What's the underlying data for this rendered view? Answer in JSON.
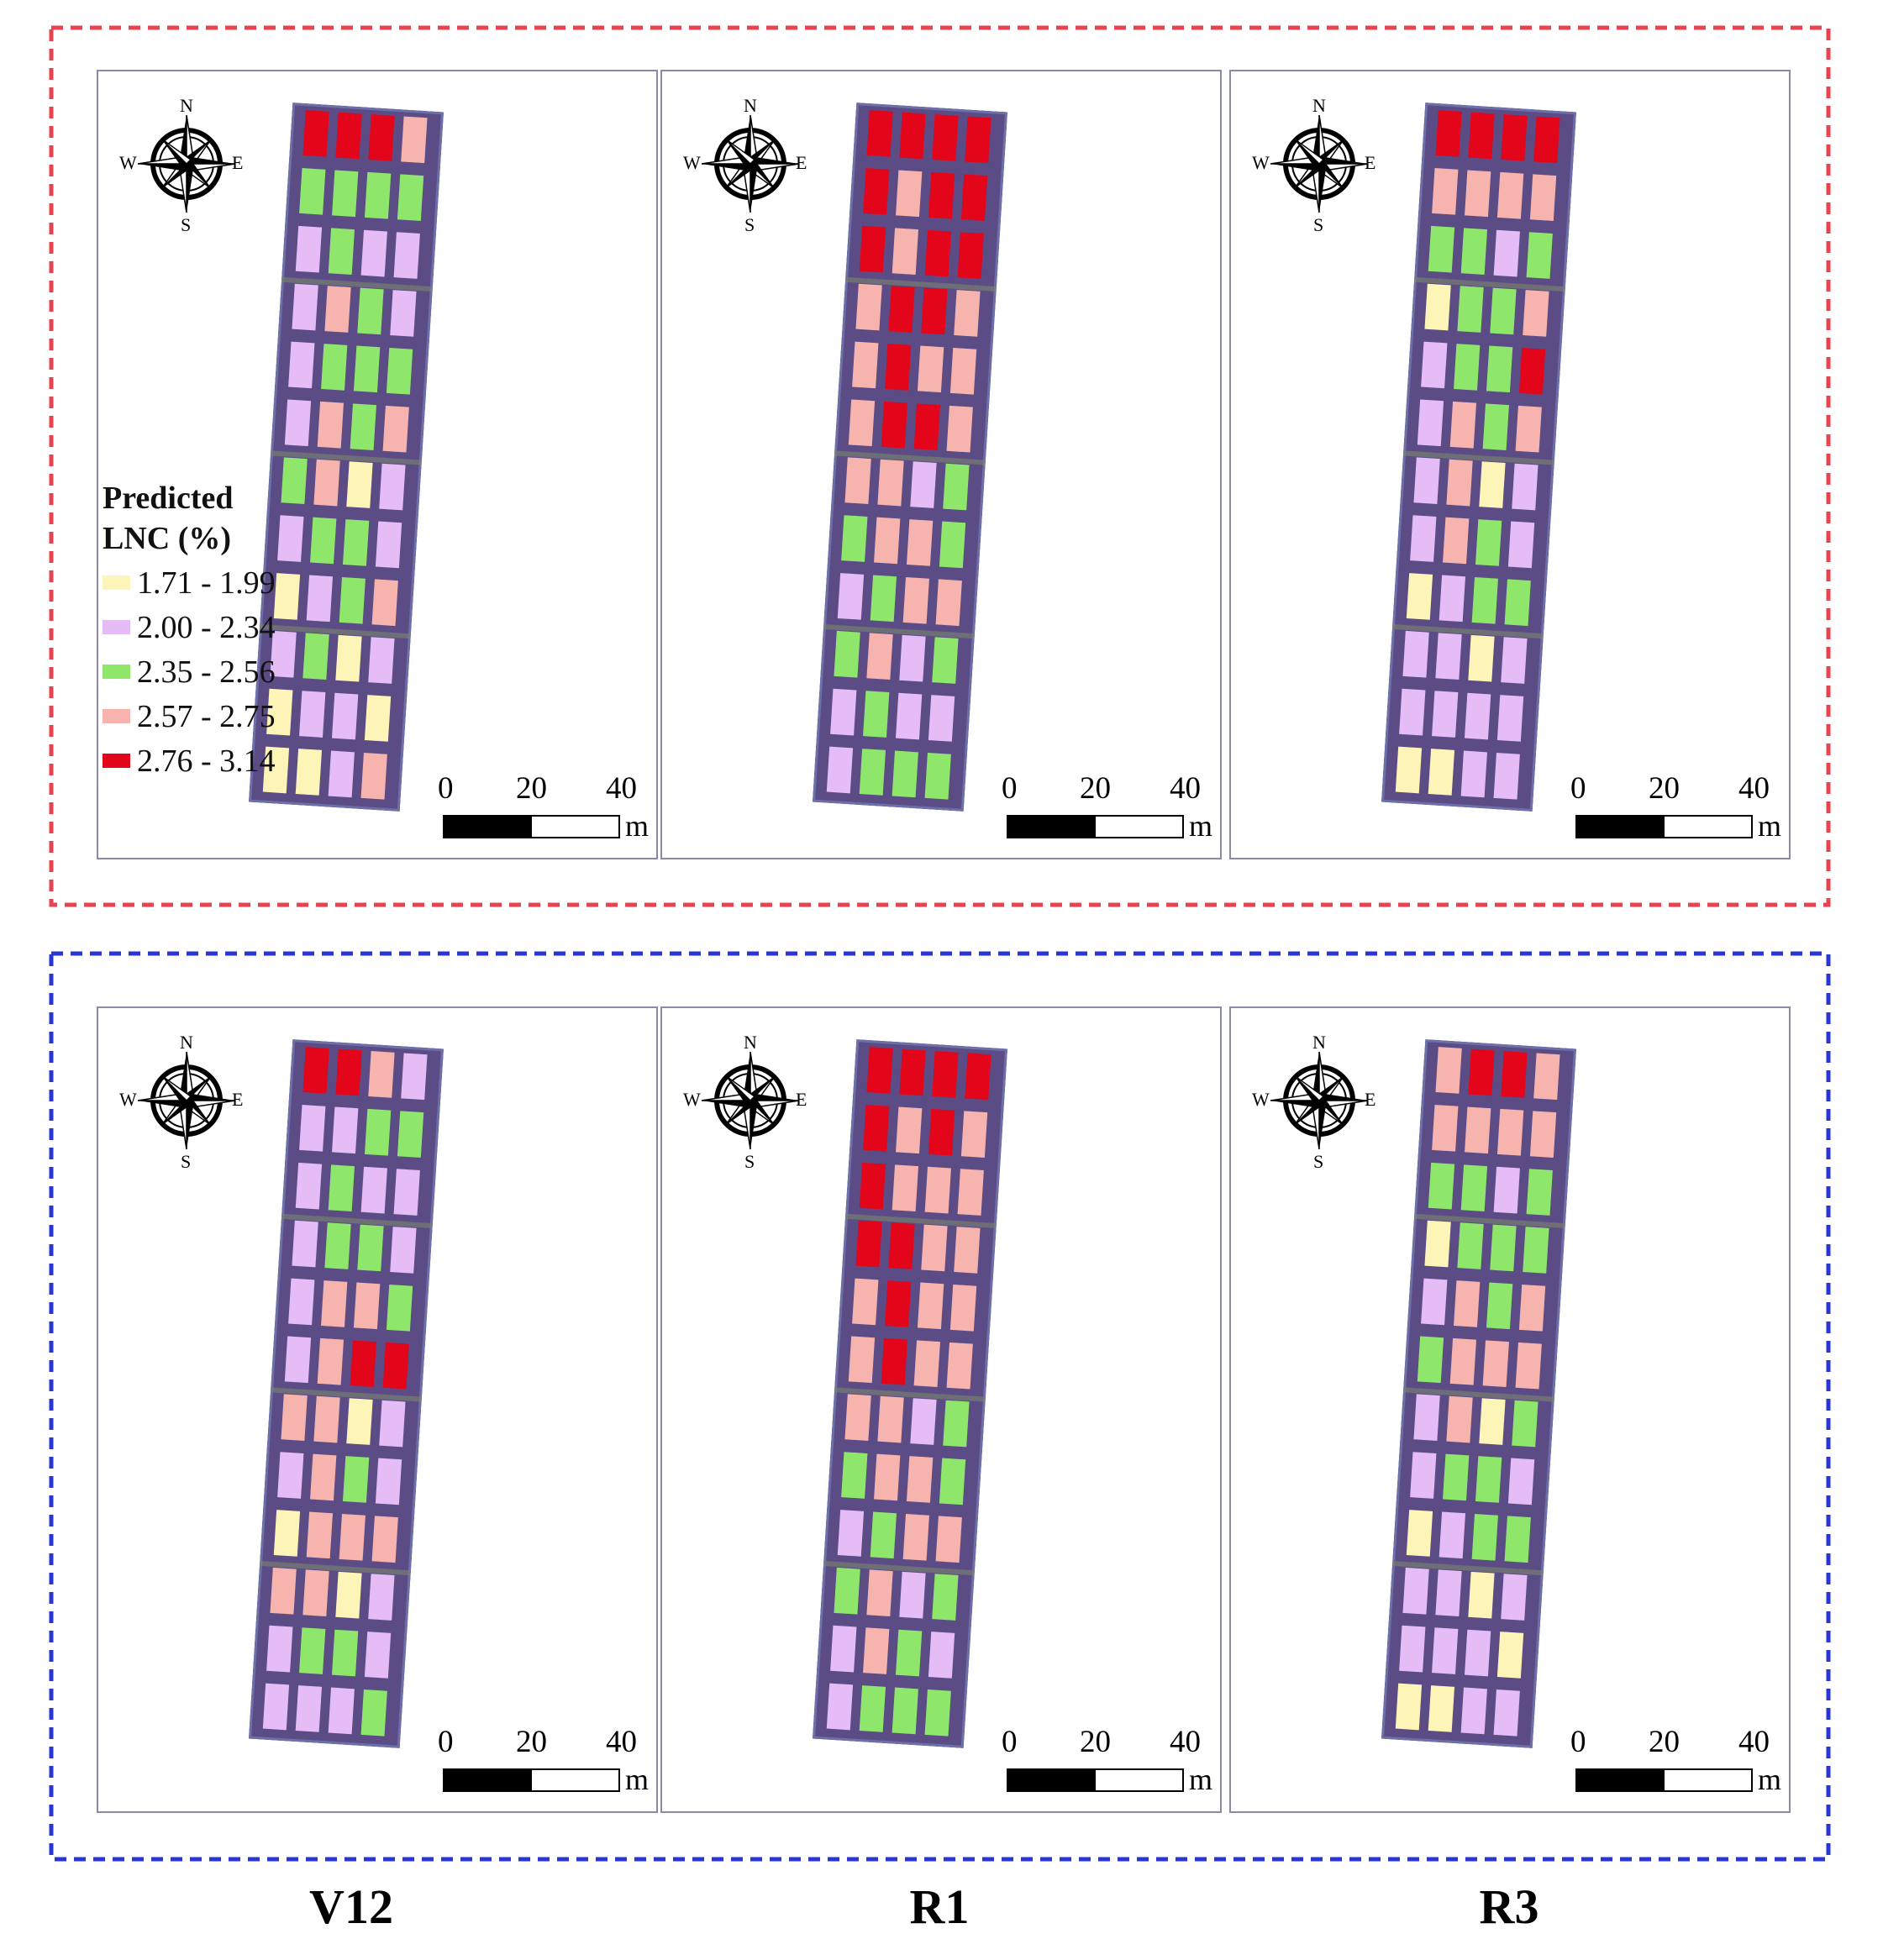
{
  "legend": {
    "title_line1": "Predicted",
    "title_line2": "LNC (%)",
    "classes": [
      {
        "label": "1.71 - 1.99",
        "color": "#fdf5b8"
      },
      {
        "label": "2.00 - 2.34",
        "color": "#e6bcf6"
      },
      {
        "label": "2.35 - 2.56",
        "color": "#8ee66b"
      },
      {
        "label": "2.57 - 2.75",
        "color": "#f7b3ae"
      },
      {
        "label": "2.76 - 3.14",
        "color": "#e3051a"
      }
    ]
  },
  "compass": {
    "n": "N",
    "s": "S",
    "e": "E",
    "w": "W"
  },
  "scalebar": {
    "ticks": [
      "0",
      "20",
      "40"
    ],
    "unit": "m"
  },
  "group_border_colors": [
    "#e8434f",
    "#2a35d6"
  ],
  "stages": [
    "V12",
    "R1",
    "R3"
  ],
  "plot_grids": [
    [
      [
        [
          4,
          4,
          4,
          3
        ],
        [
          2,
          2,
          2,
          2
        ],
        [
          1,
          2,
          1,
          1
        ],
        [
          1,
          3,
          2,
          1
        ],
        [
          1,
          2,
          2,
          2
        ],
        [
          1,
          3,
          2,
          3
        ],
        [
          2,
          3,
          0,
          1
        ],
        [
          1,
          2,
          2,
          1
        ],
        [
          0,
          1,
          2,
          3
        ],
        [
          1,
          2,
          0,
          1
        ],
        [
          0,
          1,
          1,
          0
        ],
        [
          0,
          0,
          1,
          3
        ]
      ],
      [
        [
          4,
          4,
          4,
          4
        ],
        [
          4,
          3,
          4,
          4
        ],
        [
          4,
          3,
          4,
          4
        ],
        [
          3,
          4,
          4,
          3
        ],
        [
          3,
          4,
          3,
          3
        ],
        [
          3,
          4,
          4,
          3
        ],
        [
          3,
          3,
          1,
          2
        ],
        [
          2,
          3,
          3,
          2
        ],
        [
          1,
          2,
          3,
          3
        ],
        [
          2,
          3,
          1,
          2
        ],
        [
          1,
          2,
          1,
          1
        ],
        [
          1,
          2,
          2,
          2
        ]
      ],
      [
        [
          4,
          4,
          4,
          4
        ],
        [
          3,
          3,
          3,
          3
        ],
        [
          2,
          2,
          1,
          2
        ],
        [
          0,
          2,
          2,
          3
        ],
        [
          1,
          2,
          2,
          4
        ],
        [
          1,
          3,
          2,
          3
        ],
        [
          1,
          3,
          0,
          1
        ],
        [
          1,
          3,
          2,
          1
        ],
        [
          0,
          1,
          2,
          2
        ],
        [
          1,
          1,
          0,
          1
        ],
        [
          1,
          1,
          1,
          1
        ],
        [
          0,
          0,
          1,
          1
        ]
      ]
    ],
    [
      [
        [
          4,
          4,
          3,
          1
        ],
        [
          1,
          1,
          2,
          2
        ],
        [
          1,
          2,
          1,
          1
        ],
        [
          1,
          2,
          2,
          1
        ],
        [
          1,
          3,
          3,
          2
        ],
        [
          1,
          3,
          4,
          4
        ],
        [
          3,
          3,
          0,
          1
        ],
        [
          1,
          3,
          2,
          1
        ],
        [
          0,
          3,
          3,
          3
        ],
        [
          3,
          3,
          0,
          1
        ],
        [
          1,
          2,
          2,
          1
        ],
        [
          1,
          1,
          1,
          2
        ]
      ],
      [
        [
          4,
          4,
          4,
          4
        ],
        [
          4,
          3,
          4,
          3
        ],
        [
          4,
          3,
          3,
          3
        ],
        [
          4,
          4,
          3,
          3
        ],
        [
          3,
          4,
          3,
          3
        ],
        [
          3,
          4,
          3,
          3
        ],
        [
          3,
          3,
          1,
          2
        ],
        [
          2,
          3,
          3,
          2
        ],
        [
          1,
          2,
          3,
          3
        ],
        [
          2,
          3,
          1,
          2
        ],
        [
          1,
          3,
          2,
          1
        ],
        [
          1,
          2,
          2,
          2
        ]
      ],
      [
        [
          3,
          4,
          4,
          3
        ],
        [
          3,
          3,
          3,
          3
        ],
        [
          2,
          2,
          1,
          2
        ],
        [
          0,
          2,
          2,
          2
        ],
        [
          1,
          3,
          2,
          3
        ],
        [
          2,
          3,
          3,
          3
        ],
        [
          1,
          3,
          0,
          2
        ],
        [
          1,
          2,
          2,
          1
        ],
        [
          0,
          1,
          2,
          2
        ],
        [
          1,
          1,
          0,
          1
        ],
        [
          1,
          1,
          1,
          0
        ],
        [
          0,
          0,
          1,
          1
        ]
      ]
    ]
  ]
}
